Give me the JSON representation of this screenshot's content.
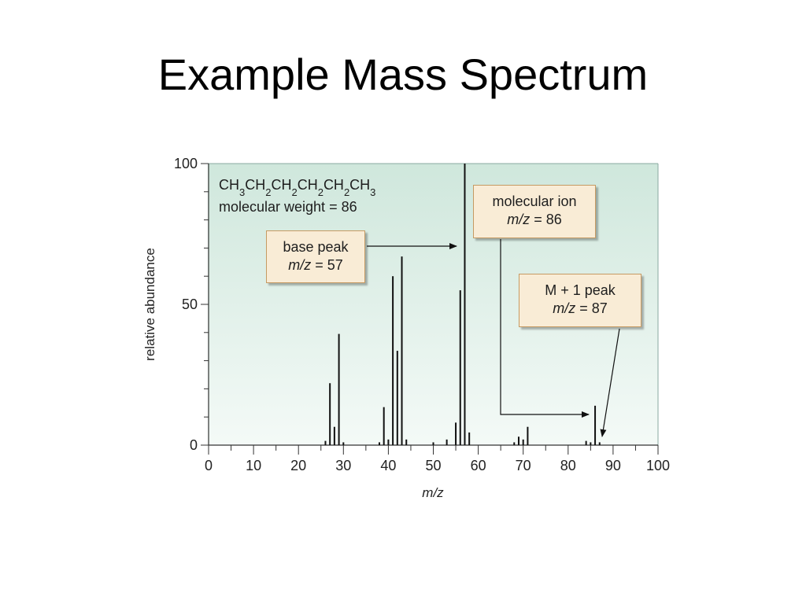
{
  "title": "Example Mass Spectrum",
  "chart_data": {
    "type": "bar",
    "xlabel": "m/z",
    "ylabel": "relative abundance",
    "xlim": [
      0,
      100
    ],
    "ylim": [
      0,
      100
    ],
    "xticks": [
      0,
      10,
      20,
      30,
      40,
      50,
      60,
      70,
      80,
      90,
      100
    ],
    "yticks": [
      0,
      50,
      100
    ],
    "grid": false,
    "background_color": "#d6ebe2",
    "bar_color": "#111111",
    "x": [
      26,
      27,
      28,
      29,
      30,
      38,
      39,
      40,
      41,
      42,
      43,
      44,
      50,
      53,
      55,
      56,
      57,
      58,
      68,
      69,
      70,
      71,
      84,
      85,
      86,
      87
    ],
    "values": [
      1.5,
      22,
      6.5,
      39.5,
      1,
      1,
      13.5,
      2,
      60,
      33.5,
      67,
      2,
      1,
      2,
      8,
      55,
      100,
      4.5,
      1,
      3,
      2,
      6.5,
      1.5,
      1,
      14,
      1
    ],
    "annotations": {
      "formula": "CH3CH2CH2CH2CH2CH3",
      "formula_parts": [
        {
          "t": "CH",
          "sub": false
        },
        {
          "t": "3",
          "sub": true
        },
        {
          "t": "CH",
          "sub": false
        },
        {
          "t": "2",
          "sub": true
        },
        {
          "t": "CH",
          "sub": false
        },
        {
          "t": "2",
          "sub": true
        },
        {
          "t": "CH",
          "sub": false
        },
        {
          "t": "2",
          "sub": true
        },
        {
          "t": "CH",
          "sub": false
        },
        {
          "t": "2",
          "sub": true
        },
        {
          "t": "CH",
          "sub": false
        },
        {
          "t": "3",
          "sub": true
        }
      ],
      "molecular_weight": "molecular weight = 86",
      "base_peak": {
        "line1": "base peak",
        "var": "m/z",
        "value": "= 57"
      },
      "molecular_ion": {
        "line1": "molecular ion",
        "var": "m/z",
        "value": "= 86"
      },
      "m_plus_1": {
        "line1": "M + 1 peak",
        "var": "m/z",
        "value": "= 87"
      }
    }
  }
}
